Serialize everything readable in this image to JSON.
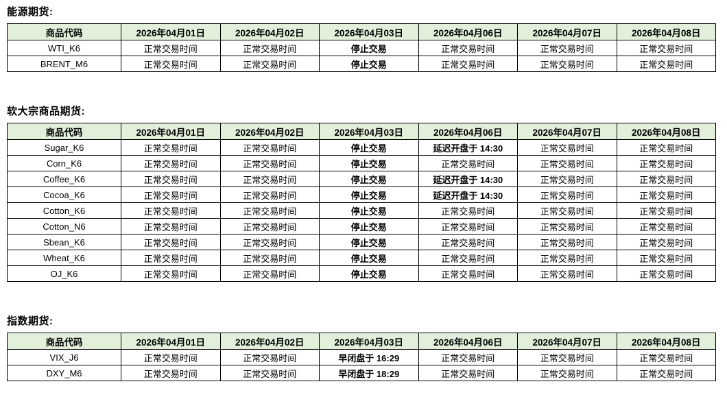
{
  "colors": {
    "header_bg": "#e2efda",
    "border": "#000000",
    "text": "#000000"
  },
  "statuses": {
    "normal": "正常交易时间",
    "halted": "停止交易"
  },
  "sections": [
    {
      "title": "能源期货:",
      "columns": [
        "商品代码",
        "2026年04月01日",
        "2026年04月02日",
        "2026年04月03日",
        "2026年04月06日",
        "2026年04月07日",
        "2026年04月08日"
      ],
      "rows": [
        {
          "code": "WTI_K6",
          "cells": [
            "正常交易时间",
            "正常交易时间",
            {
              "t": "停止交易",
              "b": true
            },
            "正常交易时间",
            "正常交易时间",
            "正常交易时间"
          ]
        },
        {
          "code": "BRENT_M6",
          "cells": [
            "正常交易时间",
            "正常交易时间",
            {
              "t": "停止交易",
              "b": true
            },
            "正常交易时间",
            "正常交易时间",
            "正常交易时间"
          ]
        }
      ]
    },
    {
      "title": "软大宗商品期货:",
      "columns": [
        "商品代码",
        "2026年04月01日",
        "2026年04月02日",
        "2026年04月03日",
        "2026年04月06日",
        "2026年04月07日",
        "2026年04月08日"
      ],
      "rows": [
        {
          "code": "Sugar_K6",
          "cells": [
            "正常交易时间",
            "正常交易时间",
            {
              "t": "停止交易",
              "b": true
            },
            {
              "t": "延迟开盘于 14:30",
              "b": true
            },
            "正常交易时间",
            "正常交易时间"
          ]
        },
        {
          "code": "Corn_K6",
          "cells": [
            "正常交易时间",
            "正常交易时间",
            {
              "t": "停止交易",
              "b": true
            },
            "正常交易时间",
            "正常交易时间",
            "正常交易时间"
          ]
        },
        {
          "code": "Coffee_K6",
          "cells": [
            "正常交易时间",
            "正常交易时间",
            {
              "t": "停止交易",
              "b": true
            },
            {
              "t": "延迟开盘于 14:30",
              "b": true
            },
            "正常交易时间",
            "正常交易时间"
          ]
        },
        {
          "code": "Cocoa_K6",
          "cells": [
            "正常交易时间",
            "正常交易时间",
            {
              "t": "停止交易",
              "b": true
            },
            {
              "t": "延迟开盘于 14:30",
              "b": true
            },
            "正常交易时间",
            "正常交易时间"
          ]
        },
        {
          "code": "Cotton_K6",
          "cells": [
            "正常交易时间",
            "正常交易时间",
            {
              "t": "停止交易",
              "b": true
            },
            "正常交易时间",
            "正常交易时间",
            "正常交易时间"
          ]
        },
        {
          "code": "Cotton_N6",
          "cells": [
            "正常交易时间",
            "正常交易时间",
            {
              "t": "停止交易",
              "b": true
            },
            "正常交易时间",
            "正常交易时间",
            "正常交易时间"
          ]
        },
        {
          "code": "Sbean_K6",
          "cells": [
            "正常交易时间",
            "正常交易时间",
            {
              "t": "停止交易",
              "b": true
            },
            "正常交易时间",
            "正常交易时间",
            "正常交易时间"
          ]
        },
        {
          "code": "Wheat_K6",
          "cells": [
            "正常交易时间",
            "正常交易时间",
            {
              "t": "停止交易",
              "b": true
            },
            "正常交易时间",
            "正常交易时间",
            "正常交易时间"
          ]
        },
        {
          "code": "OJ_K6",
          "cells": [
            "正常交易时间",
            "正常交易时间",
            {
              "t": "停止交易",
              "b": true
            },
            "正常交易时间",
            "正常交易时间",
            "正常交易时间"
          ]
        }
      ]
    },
    {
      "title": "指数期货:",
      "columns": [
        "商品代码",
        "2026年04月01日",
        "2026年04月02日",
        "2026年04月03日",
        "2026年04月06日",
        "2026年04月07日",
        "2026年04月08日"
      ],
      "rows": [
        {
          "code": "VIX_J6",
          "cells": [
            "正常交易时间",
            "正常交易时间",
            {
              "t": "早闭盘于 16:29",
              "b": true
            },
            "正常交易时间",
            "正常交易时间",
            "正常交易时间"
          ]
        },
        {
          "code": "DXY_M6",
          "cells": [
            "正常交易时间",
            "正常交易时间",
            {
              "t": "早闭盘于 18:29",
              "b": true
            },
            "正常交易时间",
            "正常交易时间",
            "正常交易时间"
          ]
        }
      ]
    }
  ]
}
